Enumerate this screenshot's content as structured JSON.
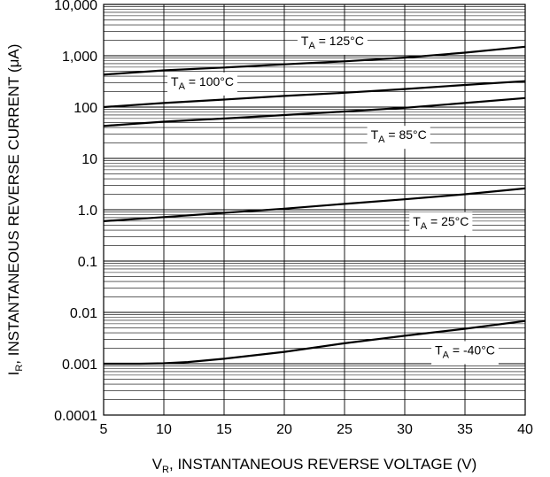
{
  "chart_data": {
    "type": "line",
    "xlabel": {
      "main": "V",
      "sub": "R",
      "rest": ", INSTANTANEOUS REVERSE VOLTAGE (V)"
    },
    "ylabel": {
      "main": "I",
      "sub": "R",
      "rest": ", INSTANTANEOUS REVERSE CURRENT (μA)"
    },
    "xlim": [
      5,
      40
    ],
    "ylim": [
      0.0001,
      10000
    ],
    "yscale": "log",
    "grid": true,
    "x_ticks": [
      5,
      10,
      15,
      20,
      25,
      30,
      35,
      40
    ],
    "x_tick_labels": [
      "5",
      "10",
      "15",
      "20",
      "25",
      "30",
      "35",
      "40"
    ],
    "y_ticks": [
      0.0001,
      0.001,
      0.01,
      0.1,
      1,
      10,
      100,
      1000,
      10000
    ],
    "y_tick_labels": [
      "0.0001",
      "0.001",
      "0.01",
      "0.1",
      "1.0",
      "10",
      "100",
      "1,000",
      "10,000"
    ],
    "series": [
      {
        "name": "125°C",
        "label_prefix": "T",
        "label_sub": "A",
        "label_rest": " = 125°C",
        "x": [
          5,
          10,
          15,
          20,
          25,
          30,
          35,
          40
        ],
        "y": [
          430,
          520,
          590,
          680,
          780,
          920,
          1150,
          1500
        ]
      },
      {
        "name": "100°C",
        "label_prefix": "T",
        "label_sub": "A",
        "label_rest": " = 100°C",
        "x": [
          5,
          10,
          15,
          20,
          25,
          30,
          35,
          40
        ],
        "y": [
          100,
          120,
          140,
          165,
          190,
          225,
          270,
          320
        ]
      },
      {
        "name": "85°C",
        "label_prefix": "T",
        "label_sub": "A",
        "label_rest": " = 85°C",
        "x": [
          5,
          10,
          15,
          20,
          25,
          30,
          35,
          40
        ],
        "y": [
          43,
          52,
          60,
          70,
          82,
          97,
          120,
          150
        ]
      },
      {
        "name": "25°C",
        "label_prefix": "T",
        "label_sub": "A",
        "label_rest": " = 25°C",
        "x": [
          5,
          10,
          15,
          20,
          25,
          30,
          35,
          40
        ],
        "y": [
          0.6,
          0.72,
          0.87,
          1.05,
          1.3,
          1.6,
          2.0,
          2.6
        ]
      },
      {
        "name": "-40°C",
        "label_prefix": "T",
        "label_sub": "A",
        "label_rest": " = -40°C",
        "x": [
          5,
          8,
          10,
          12,
          15,
          20,
          25,
          30,
          35,
          40
        ],
        "y": [
          0.001,
          0.001,
          0.00102,
          0.00108,
          0.00125,
          0.0017,
          0.0025,
          0.0035,
          0.0048,
          0.0068
        ]
      }
    ]
  }
}
